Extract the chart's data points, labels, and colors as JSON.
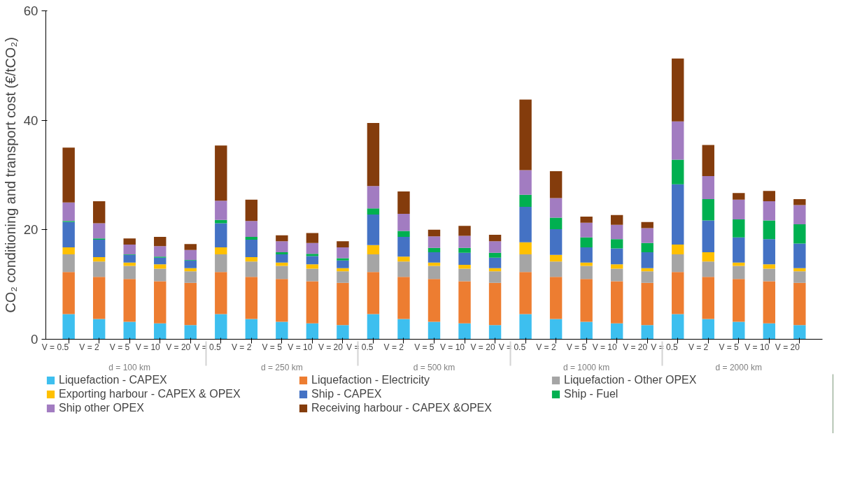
{
  "chart_data": {
    "type": "bar",
    "stacked": true,
    "ylabel": "CO₂ conditioning and transport cost (€/tCO₂)",
    "categories": [
      "V = 0.5",
      "V = 2",
      "V = 5",
      "V = 10",
      "V = 20",
      "V = 0.5",
      "V = 2",
      "V = 5",
      "V = 10",
      "V = 20",
      "V = 0.5",
      "V = 2",
      "V = 5",
      "V = 10",
      "V = 20",
      "V = 0.5",
      "V = 2",
      "V = 5",
      "V = 10",
      "V = 20",
      "V = 0.5",
      "V = 2",
      "V = 5",
      "V = 10",
      "V = 20"
    ],
    "annotations": [
      "d = 100 km",
      "d = 250 km",
      "d = 500 km",
      "d = 1000 km",
      "d = 2000 km"
    ],
    "ylim": [
      0,
      60
    ],
    "yticks": [
      0,
      20,
      40,
      60
    ],
    "grid": false,
    "legend": "bottom",
    "series": [
      {
        "name": "Liquefaction - CAPEX",
        "color": "#3dbfef",
        "values": [
          4.6,
          3.7,
          3.2,
          2.9,
          2.6,
          4.6,
          3.7,
          3.2,
          2.9,
          2.6,
          4.6,
          3.7,
          3.2,
          2.9,
          2.6,
          4.6,
          3.7,
          3.2,
          2.9,
          2.6,
          4.6,
          3.7,
          3.2,
          2.9,
          2.6
        ]
      },
      {
        "name": "Liquefaction - Electricity",
        "color": "#ed7d31",
        "values": [
          7.7,
          7.7,
          7.8,
          7.7,
          7.7,
          7.7,
          7.7,
          7.8,
          7.7,
          7.7,
          7.7,
          7.7,
          7.8,
          7.7,
          7.7,
          7.7,
          7.7,
          7.8,
          7.7,
          7.7,
          7.7,
          7.7,
          7.8,
          7.7,
          7.7
        ]
      },
      {
        "name": "Liquefaction - Other OPEX",
        "color": "#a5a5a5",
        "values": [
          3.2,
          2.8,
          2.4,
          2.3,
          2.1,
          3.2,
          2.8,
          2.4,
          2.3,
          2.1,
          3.2,
          2.8,
          2.4,
          2.3,
          2.1,
          3.2,
          2.8,
          2.4,
          2.3,
          2.1,
          3.2,
          2.8,
          2.4,
          2.3,
          2.1
        ]
      },
      {
        "name": "Exporting harbour - CAPEX & OPEX",
        "color": "#ffc000",
        "values": [
          1.3,
          0.8,
          0.6,
          0.8,
          0.6,
          1.3,
          0.8,
          0.6,
          0.8,
          0.6,
          1.7,
          0.9,
          0.6,
          0.7,
          0.6,
          2.2,
          1.2,
          0.6,
          0.8,
          0.6,
          1.8,
          1.7,
          0.6,
          0.8,
          0.6
        ]
      },
      {
        "name": "Ship - CAPEX",
        "color": "#4472c4",
        "values": [
          4.6,
          3.2,
          1.4,
          1.2,
          1.4,
          4.4,
          3.2,
          1.5,
          1.5,
          1.4,
          5.6,
          3.6,
          1.9,
          2.2,
          1.9,
          6.5,
          4.7,
          2.8,
          2.9,
          2.9,
          11.0,
          5.8,
          4.6,
          4.6,
          4.5
        ]
      },
      {
        "name": "Ship - Fuel",
        "color": "#00b050",
        "values": [
          0.2,
          0.2,
          0.1,
          0.2,
          0.1,
          0.6,
          0.5,
          0.4,
          0.4,
          0.4,
          1.1,
          1.1,
          0.8,
          0.9,
          0.9,
          2.2,
          2.1,
          1.8,
          1.7,
          1.7,
          4.5,
          3.9,
          3.3,
          3.4,
          3.5
        ]
      },
      {
        "name": "Ship other OPEX",
        "color": "#a27cc1",
        "values": [
          3.4,
          2.8,
          1.8,
          1.9,
          1.8,
          3.5,
          2.9,
          2.0,
          2.0,
          2.0,
          4.1,
          3.1,
          2.1,
          2.2,
          2.1,
          4.5,
          3.6,
          2.7,
          2.6,
          2.7,
          7.0,
          4.2,
          3.6,
          3.5,
          3.5
        ]
      },
      {
        "name": "Receiving harbour - CAPEX &OPEX",
        "color": "#843c0c",
        "values": [
          10.0,
          4.0,
          1.1,
          1.7,
          1.1,
          10.1,
          3.9,
          1.1,
          1.8,
          1.1,
          11.5,
          4.1,
          1.2,
          1.8,
          1.2,
          12.9,
          4.9,
          1.1,
          1.8,
          1.1,
          11.5,
          5.7,
          1.2,
          1.9,
          1.1
        ]
      }
    ]
  }
}
